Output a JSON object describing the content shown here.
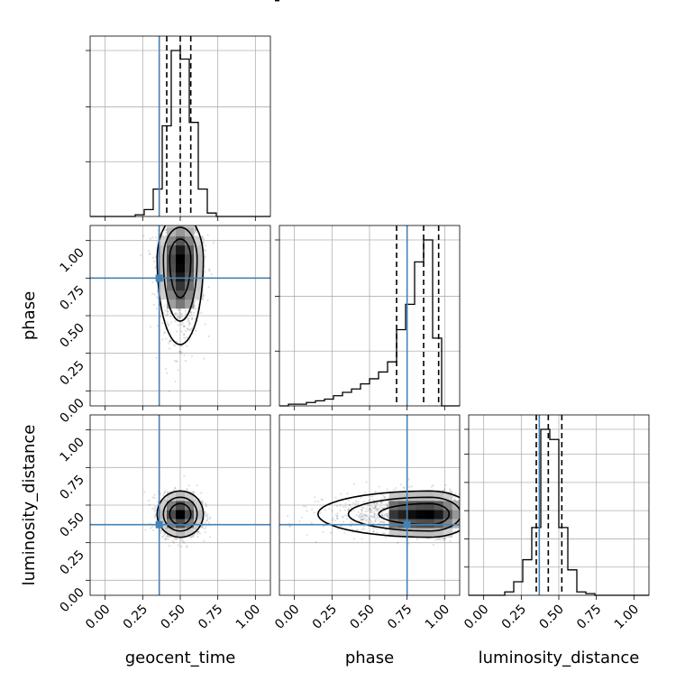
{
  "chart_data": {
    "type": "corner",
    "parameters": [
      "geocent_time",
      "phase",
      "luminosity_distance"
    ],
    "axis_labels": {
      "x": [
        "geocent_time",
        "phase",
        "luminosity_distance"
      ],
      "y": [
        "phase",
        "luminosity_distance"
      ]
    },
    "range": [
      -0.1,
      1.1
    ],
    "ticks": [
      0.0,
      0.25,
      0.5,
      0.75,
      1.0
    ],
    "tick_labels": [
      "0.00",
      "0.25",
      "0.50",
      "0.75",
      "1.00"
    ],
    "truths": [
      0.36,
      0.75,
      0.37
    ],
    "colors": {
      "truth": "#4682b4",
      "hist": "#000000",
      "grid": "#b0b0b0"
    },
    "grid": true,
    "marginals": [
      {
        "parameter": "geocent_time",
        "bin_edges": [
          -0.1,
          -0.04,
          0.02,
          0.08,
          0.14,
          0.2,
          0.26,
          0.32,
          0.38,
          0.44,
          0.5,
          0.56,
          0.62,
          0.68,
          0.74,
          0.8,
          0.86,
          0.92,
          0.98,
          1.04,
          1.1
        ],
        "counts": [
          0,
          0,
          0,
          0,
          0,
          0.01,
          0.04,
          0.16,
          0.53,
          0.97,
          0.92,
          0.55,
          0.16,
          0.02,
          0,
          0,
          0,
          0,
          0,
          0
        ],
        "quantiles": [
          0.41,
          0.5,
          0.57
        ]
      },
      {
        "parameter": "phase",
        "bin_edges": [
          -0.1,
          -0.04,
          0.02,
          0.08,
          0.14,
          0.2,
          0.26,
          0.32,
          0.38,
          0.44,
          0.5,
          0.56,
          0.62,
          0.68,
          0.74,
          0.8,
          0.86,
          0.92,
          0.98,
          1.04,
          1.1
        ],
        "counts": [
          0,
          0.01,
          0.01,
          0.02,
          0.03,
          0.04,
          0.06,
          0.08,
          0.1,
          0.13,
          0.16,
          0.2,
          0.26,
          0.45,
          0.6,
          0.85,
          0.98,
          0.4,
          0,
          0
        ],
        "quantiles": [
          0.68,
          0.86,
          0.96
        ]
      },
      {
        "parameter": "luminosity_distance",
        "bin_edges": [
          -0.1,
          -0.04,
          0.02,
          0.08,
          0.14,
          0.2,
          0.26,
          0.32,
          0.38,
          0.44,
          0.5,
          0.56,
          0.62,
          0.68,
          0.74,
          0.8,
          0.86,
          0.92,
          0.98,
          1.04,
          1.1
        ],
        "counts": [
          0,
          0,
          0,
          0,
          0.02,
          0.08,
          0.21,
          0.4,
          0.98,
          0.92,
          0.4,
          0.15,
          0.02,
          0.01,
          0,
          0,
          0,
          0,
          0,
          0
        ],
        "quantiles": [
          0.35,
          0.43,
          0.52
        ]
      }
    ],
    "joints": [
      {
        "x": "geocent_time",
        "y": "phase",
        "mean": [
          0.5,
          0.88
        ],
        "sd": [
          0.07,
          0.13
        ],
        "skew_y": -1
      },
      {
        "x": "geocent_time",
        "y": "luminosity_distance",
        "mean": [
          0.5,
          0.44
        ],
        "sd": [
          0.07,
          0.07
        ],
        "skew_y": 0
      },
      {
        "x": "phase",
        "y": "luminosity_distance",
        "mean": [
          0.9,
          0.44
        ],
        "sd": [
          0.13,
          0.07
        ],
        "skew_x": -1
      }
    ]
  }
}
